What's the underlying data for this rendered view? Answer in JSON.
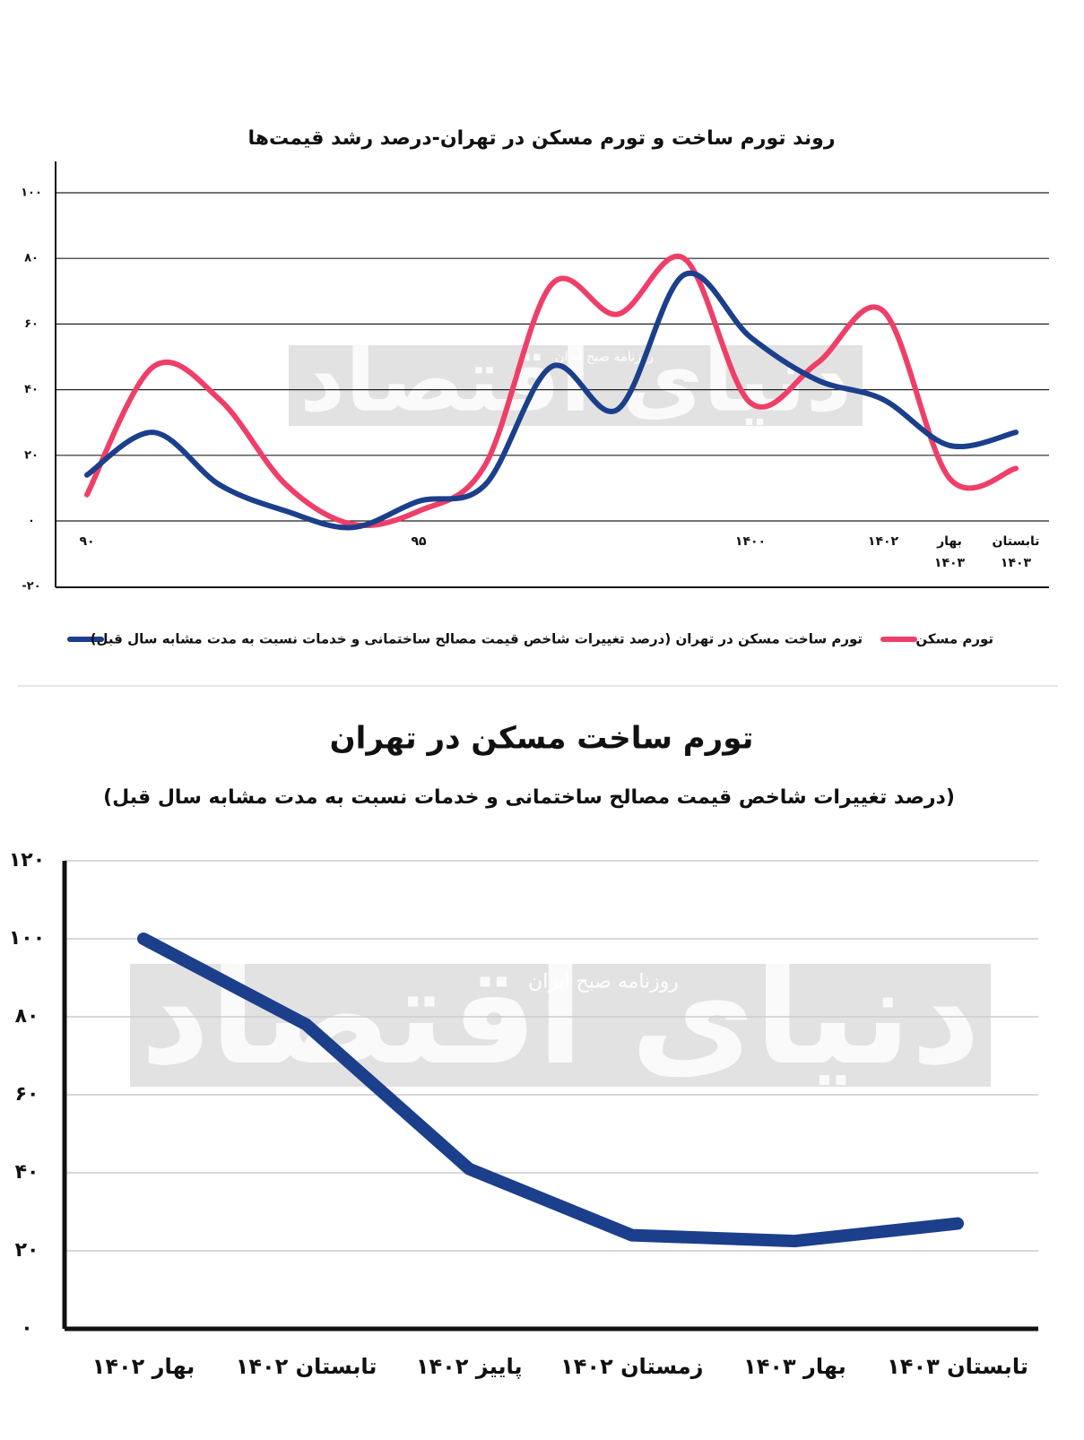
{
  "chart_data": [
    {
      "type": "line",
      "title": "روند تورم ساخت و تورم مسکن در تهران-درصد رشد قیمت‌ها",
      "categories": [
        "۹۰",
        null,
        null,
        null,
        null,
        "۹۵",
        null,
        null,
        null,
        null,
        "۱۴۰۰",
        null,
        "۱۴۰۲",
        "بهار ۱۴۰۳",
        "تابستان ۱۴۰۳"
      ],
      "series": [
        {
          "name": "تورم مسکن",
          "color": "#ee3f68",
          "values": [
            8,
            47,
            37,
            11,
            -1,
            3,
            17,
            72,
            63,
            80,
            36,
            48,
            64,
            13,
            16
          ]
        },
        {
          "name": "تورم ساخت مسکن در تهران (درصد تغییرات شاخص قیمت مصالح ساختمانی و خدمات نسبت به مدت مشابه سال قبل)",
          "color": "#1c3f8c",
          "values": [
            14,
            27,
            11,
            3,
            -2,
            6,
            11,
            47,
            34,
            75,
            56,
            43,
            37,
            23,
            27
          ]
        }
      ],
      "ylim": [
        -20,
        110
      ],
      "yticks": [
        {
          "value": -20,
          "label": "-۲۰"
        },
        {
          "value": 0,
          "label": "۰"
        },
        {
          "value": 20,
          "label": "۲۰"
        },
        {
          "value": 40,
          "label": "۴۰"
        },
        {
          "value": 60,
          "label": "۶۰"
        },
        {
          "value": 80,
          "label": "۸۰"
        },
        {
          "value": 100,
          "label": "۱۰۰"
        }
      ],
      "grid": true,
      "watermark": {
        "logo": "دنیای اقتصاد",
        "tagline": "روزنامه صبح ایران"
      }
    },
    {
      "type": "line",
      "title": "تورم ساخت مسکن در تهران",
      "subtitle": "(درصد تغییرات شاخص قیمت مصالح ساختمانی و خدمات نسبت به مدت مشابه سال قبل)",
      "categories": [
        "بهار ۱۴۰۲",
        "تابستان ۱۴۰۲",
        "پاییز ۱۴۰۲",
        "زمستان ۱۴۰۲",
        "بهار ۱۴۰۳",
        "تابستان ۱۴۰۳"
      ],
      "series": [
        {
          "color": "#1c3f8c",
          "values": [
            100,
            78,
            41,
            24,
            22.5,
            27
          ]
        }
      ],
      "ylim": [
        0,
        120
      ],
      "yticks": [
        {
          "value": 0,
          "label": "۰"
        },
        {
          "value": 20,
          "label": "۲۰"
        },
        {
          "value": 40,
          "label": "۴۰"
        },
        {
          "value": 60,
          "label": "۶۰"
        },
        {
          "value": 80,
          "label": "۸۰"
        },
        {
          "value": 100,
          "label": "۱۰۰"
        },
        {
          "value": 120,
          "label": "۱۲۰"
        }
      ],
      "grid": true,
      "watermark": {
        "logo": "دنیای اقتصاد",
        "tagline": "روزنامه صبح ایران"
      }
    }
  ]
}
